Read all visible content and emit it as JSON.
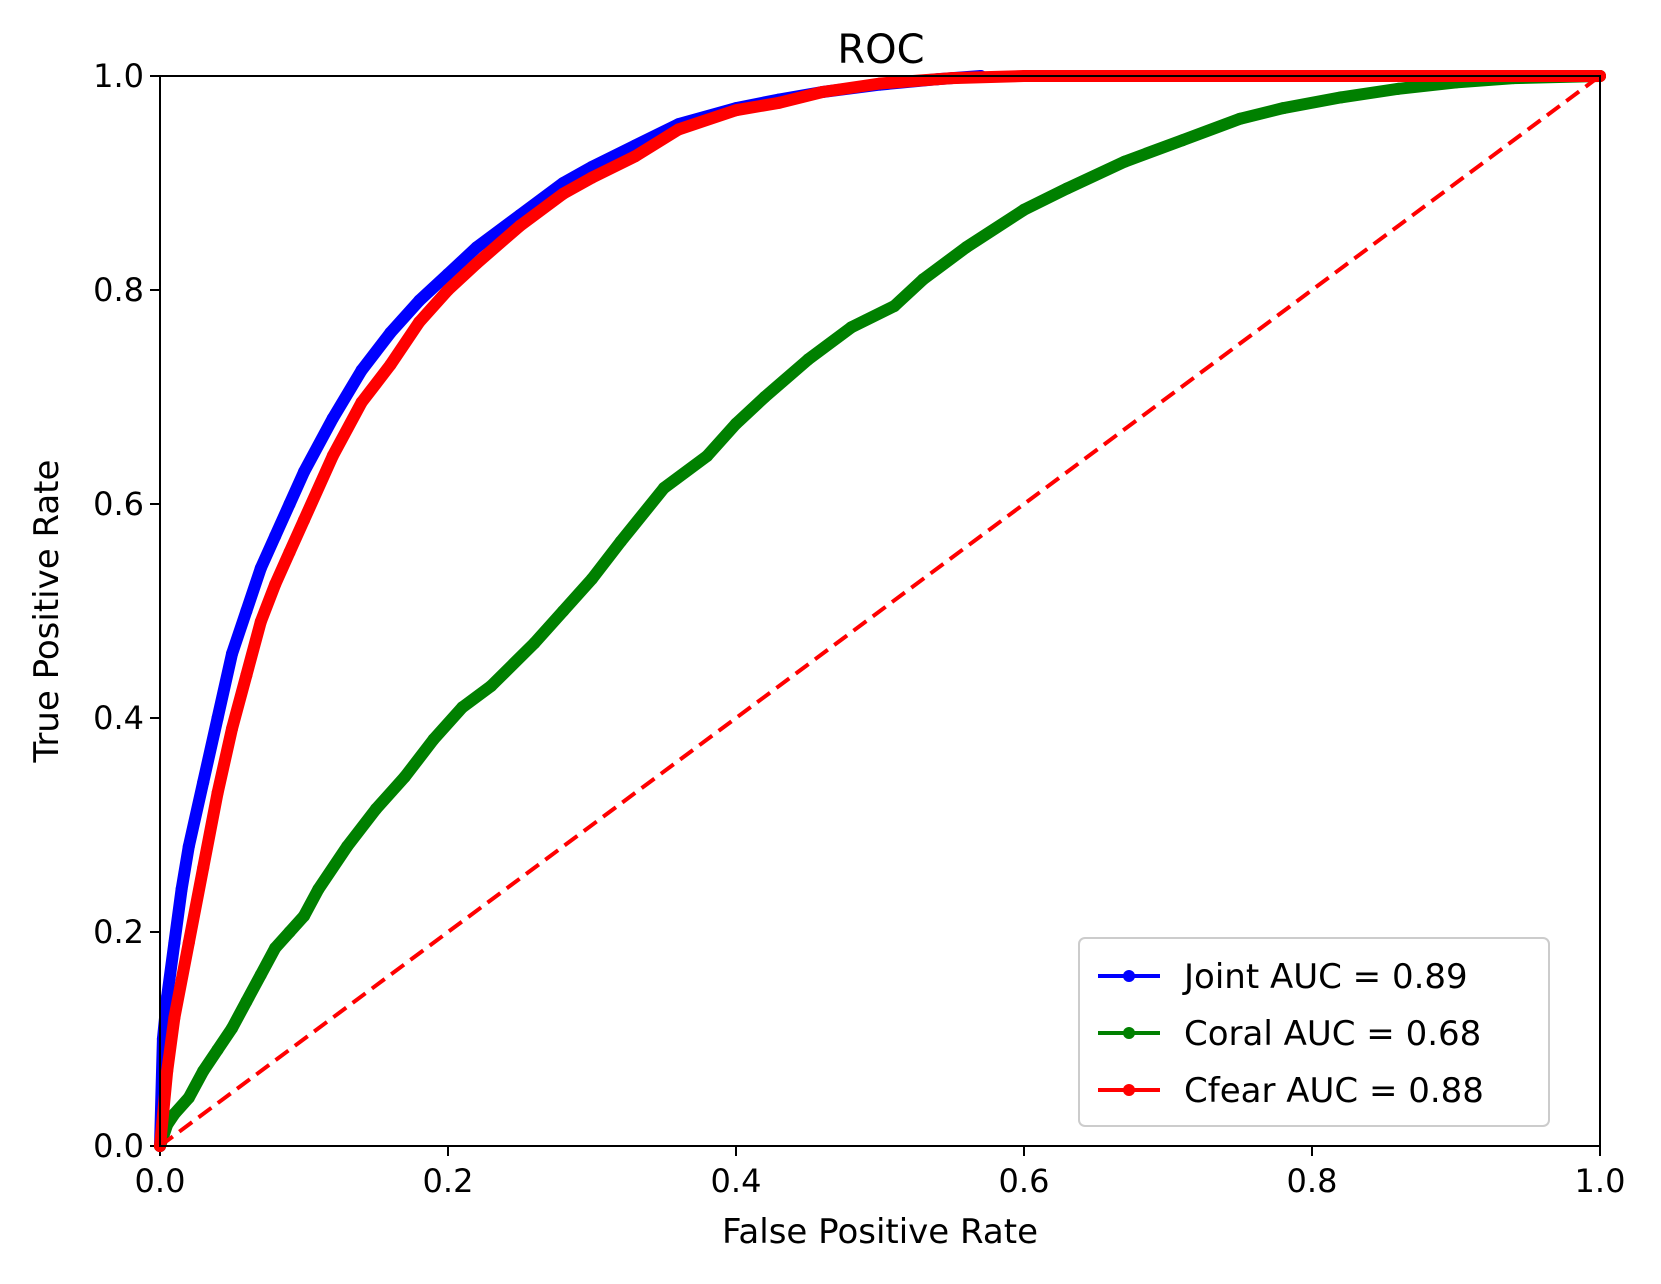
{
  "chart_data": {
    "type": "line",
    "title": "ROC",
    "xlabel": "False Positive Rate",
    "ylabel": "True Positive Rate",
    "xlim": [
      0.0,
      1.0
    ],
    "ylim": [
      0.0,
      1.0
    ],
    "xticks": [
      "0.0",
      "0.2",
      "0.4",
      "0.6",
      "0.8",
      "1.0"
    ],
    "yticks": [
      "0.0",
      "0.2",
      "0.4",
      "0.6",
      "0.8",
      "1.0"
    ],
    "grid": false,
    "legend_position": "bottom-right",
    "series": [
      {
        "name": "Joint AUC = 0.89",
        "color": "#0000ff",
        "marker": "dot",
        "x": [
          0.0,
          0.002,
          0.005,
          0.01,
          0.015,
          0.02,
          0.03,
          0.04,
          0.05,
          0.06,
          0.07,
          0.08,
          0.09,
          0.1,
          0.12,
          0.14,
          0.16,
          0.18,
          0.2,
          0.22,
          0.25,
          0.28,
          0.3,
          0.33,
          0.36,
          0.4,
          0.43,
          0.46,
          0.5,
          0.54,
          0.57
        ],
        "y": [
          0.0,
          0.1,
          0.14,
          0.19,
          0.24,
          0.28,
          0.34,
          0.4,
          0.46,
          0.5,
          0.54,
          0.57,
          0.6,
          0.63,
          0.68,
          0.725,
          0.76,
          0.79,
          0.815,
          0.84,
          0.87,
          0.9,
          0.915,
          0.935,
          0.955,
          0.97,
          0.978,
          0.985,
          0.992,
          0.997,
          1.0
        ]
      },
      {
        "name": "Coral AUC = 0.68",
        "color": "#008000",
        "marker": "dot",
        "x": [
          0.0,
          0.005,
          0.01,
          0.02,
          0.03,
          0.04,
          0.05,
          0.06,
          0.07,
          0.08,
          0.09,
          0.1,
          0.11,
          0.13,
          0.15,
          0.17,
          0.19,
          0.21,
          0.23,
          0.26,
          0.28,
          0.3,
          0.32,
          0.35,
          0.38,
          0.4,
          0.42,
          0.45,
          0.48,
          0.51,
          0.53,
          0.56,
          0.6,
          0.63,
          0.67,
          0.71,
          0.75,
          0.78,
          0.82,
          0.86,
          0.9,
          0.94,
          1.0
        ],
        "y": [
          0.0,
          0.02,
          0.03,
          0.045,
          0.07,
          0.09,
          0.11,
          0.135,
          0.16,
          0.185,
          0.2,
          0.215,
          0.24,
          0.28,
          0.315,
          0.345,
          0.38,
          0.41,
          0.43,
          0.47,
          0.5,
          0.53,
          0.565,
          0.615,
          0.645,
          0.675,
          0.7,
          0.735,
          0.765,
          0.785,
          0.81,
          0.84,
          0.875,
          0.895,
          0.92,
          0.94,
          0.96,
          0.97,
          0.98,
          0.988,
          0.994,
          0.998,
          1.0
        ]
      },
      {
        "name": "Cfear AUC = 0.88",
        "color": "#ff0000",
        "marker": "dot",
        "x": [
          0.0,
          0.005,
          0.01,
          0.02,
          0.03,
          0.04,
          0.05,
          0.06,
          0.07,
          0.08,
          0.09,
          0.1,
          0.12,
          0.14,
          0.16,
          0.18,
          0.2,
          0.22,
          0.25,
          0.28,
          0.3,
          0.33,
          0.36,
          0.4,
          0.43,
          0.46,
          0.5,
          0.55,
          0.6,
          0.7,
          0.8,
          0.9,
          1.0
        ],
        "y": [
          0.0,
          0.07,
          0.12,
          0.19,
          0.26,
          0.33,
          0.39,
          0.44,
          0.49,
          0.525,
          0.555,
          0.585,
          0.645,
          0.695,
          0.73,
          0.77,
          0.8,
          0.825,
          0.86,
          0.89,
          0.905,
          0.925,
          0.95,
          0.968,
          0.975,
          0.985,
          0.993,
          0.998,
          1.0,
          1.0,
          1.0,
          1.0,
          1.0
        ]
      },
      {
        "name": "diagonal",
        "color": "#ff0000",
        "dashed": true,
        "x": [
          0.0,
          1.0
        ],
        "y": [
          0.0,
          1.0
        ]
      }
    ]
  }
}
